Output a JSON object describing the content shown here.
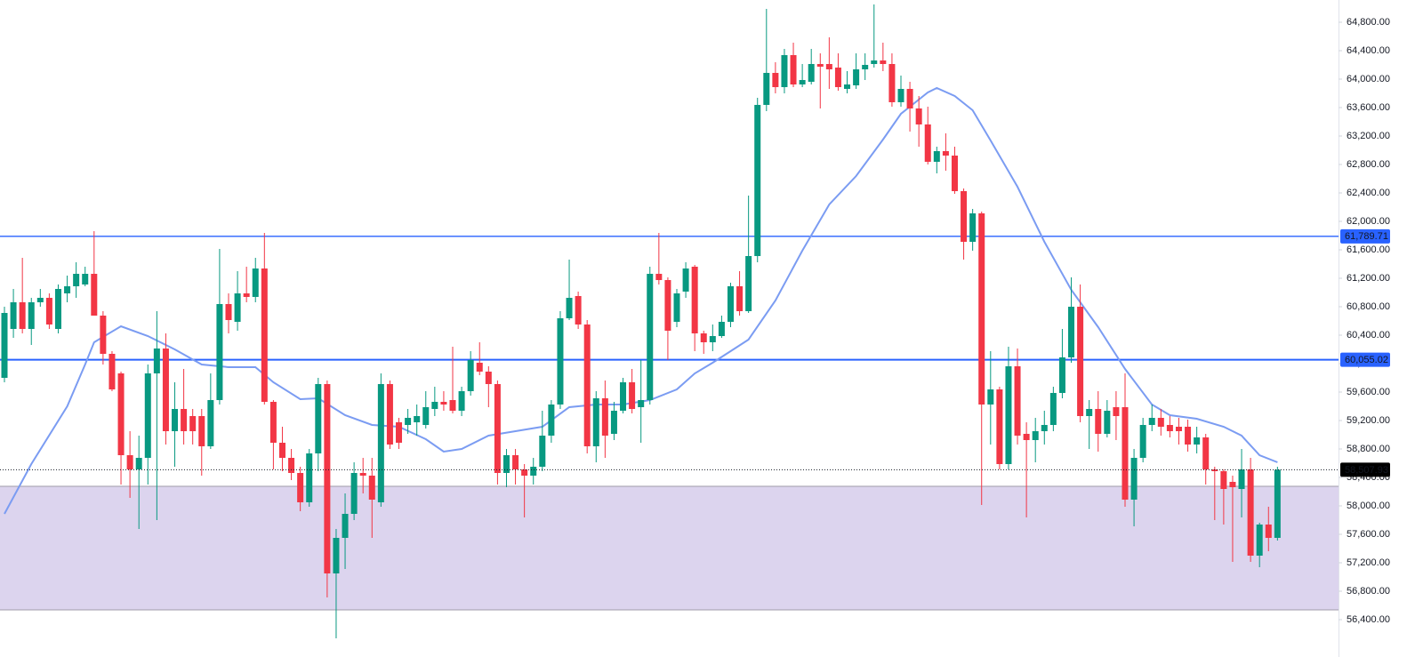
{
  "chart_data": {
    "type": "candlestick",
    "up_color": "#089981",
    "down_color": "#f23645",
    "ylim": [
      55875,
      65112.5
    ],
    "grid": false,
    "yticks": [
      {
        "value": 56400,
        "label": "56,400.00"
      },
      {
        "value": 56800,
        "label": "56,800.00"
      },
      {
        "value": 57200,
        "label": "57,200.00"
      },
      {
        "value": 57600,
        "label": "57,600.00"
      },
      {
        "value": 58000,
        "label": "58,000.00"
      },
      {
        "value": 58400,
        "label": "58,400.00"
      },
      {
        "value": 58800,
        "label": "58,800.00"
      },
      {
        "value": 59200,
        "label": "59,200.00"
      },
      {
        "value": 59600,
        "label": "59,600.00"
      },
      {
        "value": 60000,
        "label": "60,000.00"
      },
      {
        "value": 60400,
        "label": "60,400.00"
      },
      {
        "value": 60800,
        "label": "60,800.00"
      },
      {
        "value": 61200,
        "label": "61,200.00"
      },
      {
        "value": 61600,
        "label": "61,600.00"
      },
      {
        "value": 62000,
        "label": "62,000.00"
      },
      {
        "value": 62400,
        "label": "62,400.00"
      },
      {
        "value": 62800,
        "label": "62,800.00"
      },
      {
        "value": 63200,
        "label": "63,200.00"
      },
      {
        "value": 63600,
        "label": "63,600.00"
      },
      {
        "value": 64000,
        "label": "64,000.00"
      },
      {
        "value": 64400,
        "label": "64,400.00"
      },
      {
        "value": 64800,
        "label": "64,800.00"
      }
    ],
    "open": [
      59800,
      60487.5,
      60862.5,
      60487.5,
      60862.5,
      60925,
      60487.5,
      60987.5,
      61087.5,
      61112.5,
      61262.5,
      60675,
      60137.5,
      59862.5,
      58712.5,
      58512.5,
      58675,
      59862.5,
      60212.5,
      59050,
      59362.5,
      59262.5,
      59262.5,
      58837.5,
      59487.5,
      60837.5,
      60587.5,
      60987.5,
      60937.5,
      61337.5,
      59462.5,
      58887.5,
      58675,
      58462.5,
      58050,
      58737.5,
      59712.5,
      57050,
      57550,
      57887.5,
      58462.5,
      58425,
      58050,
      59712.5,
      59175,
      59137.5,
      59175,
      59137.5,
      59362.5,
      59462.5,
      59487.5,
      59337.5,
      59612.5,
      60012.5,
      59887.5,
      59712.5,
      58462.5,
      58712.5,
      58512.5,
      58425,
      58550,
      58987.5,
      59425,
      60637.5,
      60950,
      60550,
      58837.5,
      59512.5,
      59012.5,
      59337.5,
      59737.5,
      59387.5,
      59487.5,
      61262.5,
      61175,
      60587.5,
      61012.5,
      61362.5,
      60425,
      60300,
      60387.5,
      60587.5,
      61087.5,
      60737.5,
      61512.5,
      63637.5,
      64087.5,
      63887.5,
      64337.5,
      63925,
      63962.5,
      64212.5,
      64212.5,
      64162.5,
      63862.5,
      63912.5,
      64137.5,
      64212.5,
      64262.5,
      64212.5,
      63675,
      63862.5,
      63587.5,
      63362.5,
      62837.5,
      62987.5,
      62925,
      62425,
      61712.5,
      62112.5,
      59425,
      59637.5,
      58587.5,
      59962.5,
      59012.5,
      58925,
      59050,
      59137.5,
      59587.5,
      60087.5,
      60800,
      59262.5,
      59362.5,
      59012.5,
      59387.5,
      59387.5,
      58087.5,
      58675,
      59137.5,
      59237.5,
      59137.5,
      59112.5,
      59112.5,
      58862.5,
      58962.5,
      58512.5,
      58487.5,
      58337.5,
      58237.5,
      58512.5,
      57300,
      57737.5,
      57550
    ],
    "high": [
      60800,
      61050,
      61487.5,
      60925,
      61050,
      60987.5,
      61112.5,
      61237.5,
      61425,
      61362.5,
      61862.5,
      60737.5,
      60175,
      59887.5,
      59050,
      58987.5,
      59987.5,
      60737.5,
      60425,
      59737.5,
      59925,
      59362.5,
      59362.5,
      59862.5,
      61612.5,
      60987.5,
      61300,
      61362.5,
      61487.5,
      61837.5,
      59487.5,
      59112.5,
      58800,
      58550,
      58800,
      59800,
      59762.5,
      57675,
      58175,
      58612.5,
      58675,
      58675,
      59862.5,
      59762.5,
      59237.5,
      59362.5,
      59425,
      59612.5,
      59675,
      59612.5,
      60237.5,
      59675,
      60175,
      60300,
      59962.5,
      59762.5,
      58800,
      58800,
      58587.5,
      58675,
      59337.5,
      59487.5,
      60737.5,
      61462.5,
      61012.5,
      60612.5,
      59612.5,
      59762.5,
      59462.5,
      59800,
      59925,
      60050,
      61362.5,
      61837.5,
      61212.5,
      61050,
      61425,
      61387.5,
      60462.5,
      60550,
      60675,
      61137.5,
      61300,
      62362.5,
      63737.5,
      64987.5,
      64237.5,
      64425,
      64512.5,
      64212.5,
      64425,
      64362.5,
      64587.5,
      64362.5,
      64112.5,
      64362.5,
      64362.5,
      65050,
      64512.5,
      64362.5,
      64050,
      63962.5,
      63762.5,
      63612.5,
      63050,
      63237.5,
      63050,
      62462.5,
      62175,
      62137.5,
      60175,
      59675,
      60237.5,
      60212.5,
      59175,
      59237.5,
      59337.5,
      59675,
      60487.5,
      61212.5,
      61112.5,
      59487.5,
      59612.5,
      59487.5,
      59612.5,
      59862.5,
      58800,
      59237.5,
      59425,
      59362.5,
      59262.5,
      59237.5,
      59212.5,
      59112.5,
      59012.5,
      58550,
      58512.5,
      58425,
      58800,
      58675,
      57762.5,
      57987.5,
      58550
    ],
    "low": [
      59737.5,
      60362.5,
      60425,
      60262.5,
      60800,
      60487.5,
      60425,
      60862.5,
      60925,
      61087.5,
      60675,
      59987.5,
      59612.5,
      58300,
      58112.5,
      57675,
      58300,
      57800,
      58862.5,
      58550,
      58862.5,
      58862.5,
      58425,
      58800,
      59425,
      60425,
      60462.5,
      60862.5,
      60862.5,
      59425,
      58512.5,
      58487.5,
      58362.5,
      57925,
      57987.5,
      58487.5,
      56712.5,
      56137.5,
      57112.5,
      57800,
      58175,
      57550,
      57987.5,
      58800,
      58800,
      59012.5,
      58987.5,
      59087.5,
      59262.5,
      59337.5,
      59300,
      59262.5,
      59550,
      59837.5,
      59387.5,
      58300,
      58262.5,
      58300,
      57837.5,
      58300,
      58487.5,
      58887.5,
      59362.5,
      60612.5,
      60487.5,
      58737.5,
      58612.5,
      58675,
      58925,
      59300,
      59300,
      58887.5,
      59425,
      61112.5,
      60050,
      60512.5,
      60925,
      60175,
      60137.5,
      60175,
      60362.5,
      60512.5,
      60675,
      60712.5,
      61425,
      63550,
      63800,
      63800,
      63887.5,
      63887.5,
      63925,
      63587.5,
      63862.5,
      63837.5,
      63800,
      63862.5,
      63987.5,
      64162.5,
      64112.5,
      63612.5,
      63612.5,
      63262.5,
      63050,
      62800,
      62675,
      62712.5,
      62387.5,
      61462.5,
      61587.5,
      58012.5,
      58862.5,
      58512.5,
      58512.5,
      58862.5,
      57837.5,
      58612.5,
      58862.5,
      59050,
      59512.5,
      60012.5,
      59175,
      58800,
      58762.5,
      58962.5,
      58925,
      57987.5,
      57712.5,
      58612.5,
      59050,
      58987.5,
      58962.5,
      58862.5,
      58762.5,
      58737.5,
      58300,
      57800,
      57737.5,
      57212.5,
      57837.5,
      57212.5,
      57137.5,
      57362.5,
      57512.5
    ],
    "close": [
      60712.5,
      60862.5,
      60487.5,
      60862.5,
      60925,
      60550,
      61050,
      61087.5,
      61262.5,
      61262.5,
      60675,
      60137.5,
      59637.5,
      58712.5,
      58512.5,
      58675,
      59862.5,
      60212.5,
      59050,
      59362.5,
      59050,
      59050,
      58837.5,
      59487.5,
      60837.5,
      60612.5,
      60987.5,
      60937.5,
      61337.5,
      59462.5,
      58887.5,
      58675,
      58462.5,
      58050,
      58737.5,
      59712.5,
      57050,
      57550,
      57887.5,
      58462.5,
      58425,
      58087.5,
      59712.5,
      58862.5,
      58887.5,
      59237.5,
      59262.5,
      59387.5,
      59462.5,
      59425,
      59337.5,
      59612.5,
      60050,
      59887.5,
      59712.5,
      58462.5,
      58712.5,
      58512.5,
      58425,
      58550,
      58987.5,
      59425,
      60637.5,
      60925,
      60550,
      58837.5,
      59512.5,
      58987.5,
      59337.5,
      59737.5,
      59362.5,
      59487.5,
      61262.5,
      61175,
      60462.5,
      60987.5,
      61337.5,
      60425,
      60300,
      60387.5,
      60587.5,
      61087.5,
      60737.5,
      61512.5,
      63637.5,
      64087.5,
      63887.5,
      64337.5,
      63925,
      63987.5,
      64212.5,
      64175,
      64137.5,
      63887.5,
      63925,
      64137.5,
      64200,
      64262.5,
      64212.5,
      63675,
      63862.5,
      63587.5,
      63362.5,
      62837.5,
      62987.5,
      62925,
      62425,
      61712.5,
      62112.5,
      59425,
      59637.5,
      58587.5,
      59962.5,
      58987.5,
      58925,
      59050,
      59137.5,
      59587.5,
      60087.5,
      60800,
      59262.5,
      59362.5,
      59012.5,
      59337.5,
      59262.5,
      58087.5,
      58675,
      59137.5,
      59237.5,
      59112.5,
      59050,
      59050,
      58862.5,
      58962.5,
      58512.5,
      58487.5,
      58237.5,
      58262.5,
      58512.5,
      57300,
      57737.5,
      57550,
      58507.93
    ],
    "ma": {
      "color": "#7b9cf2",
      "x": [
        0,
        3,
        7,
        9,
        10,
        13,
        16,
        19,
        22,
        25,
        28,
        30,
        33,
        35,
        38,
        41,
        44,
        47,
        49,
        51,
        54,
        57,
        60,
        63,
        66,
        69,
        72,
        75,
        77,
        79,
        81,
        83,
        86,
        89,
        92,
        95,
        98,
        100,
        103,
        104,
        106,
        108,
        110,
        113,
        116,
        119,
        122,
        125,
        128,
        130,
        133,
        136,
        138,
        140,
        142
      ],
      "values": [
        57887.5,
        58587.5,
        59400,
        59987.5,
        60300,
        60525,
        60387.5,
        60200,
        59987.5,
        59950,
        59950,
        59737.5,
        59500,
        59512.5,
        59275,
        59137.5,
        59112.5,
        58937.5,
        58762.5,
        58800,
        58987.5,
        59050,
        59112.5,
        59387.5,
        59425,
        59425,
        59487.5,
        59637.5,
        59862.5,
        60012.5,
        60175,
        60337.5,
        60887.5,
        61587.5,
        62237.5,
        62637.5,
        63150,
        63512.5,
        63812.5,
        63875,
        63762.5,
        63562.5,
        63137.5,
        62487.5,
        61712.5,
        61037.5,
        60512.5,
        59925,
        59425,
        59275,
        59225,
        59112.5,
        58987.5,
        58712.5,
        58612.5
      ]
    },
    "levels": [
      {
        "value": 61789.71,
        "label": "61,789.71",
        "color": "#2962ff"
      },
      {
        "value": 60055.02,
        "label": "60,055.02",
        "color": "#2962ff"
      }
    ],
    "zone": {
      "from": 56537.5,
      "to": 58275,
      "color": "#dcd4ee",
      "border": "#9f9ba9"
    },
    "last_price": {
      "value": 58507.93,
      "label": "58,507.93"
    }
  }
}
